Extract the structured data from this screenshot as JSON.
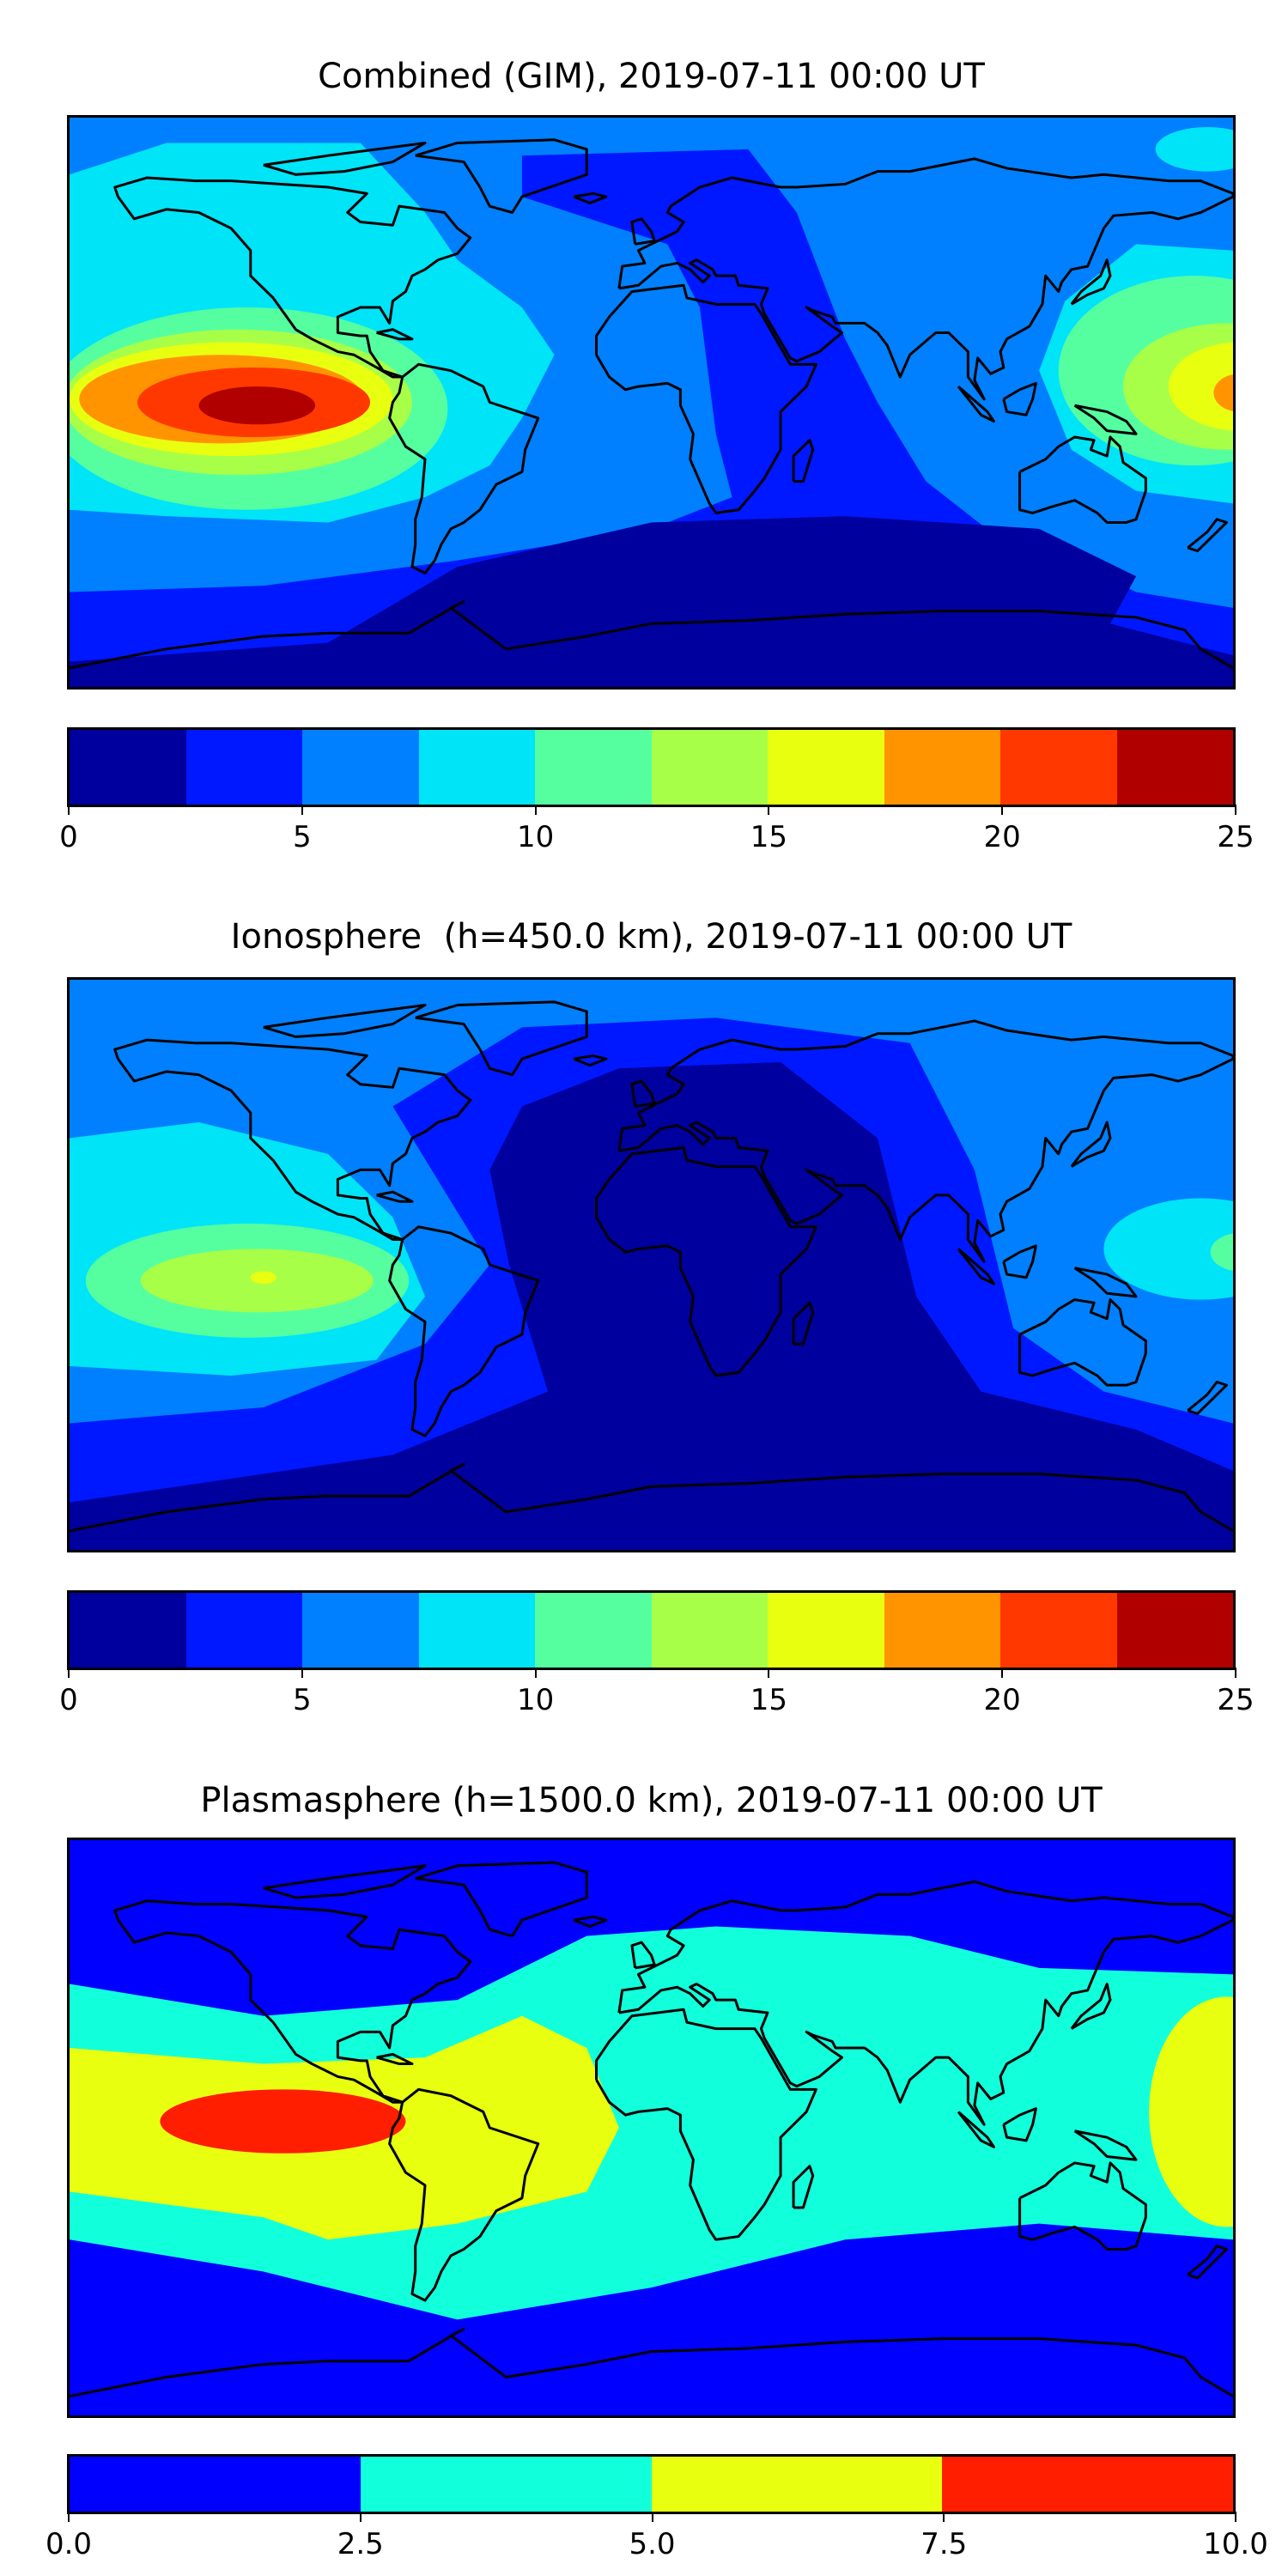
{
  "chart_data": [
    {
      "type": "heatmap",
      "title": "Combined (GIM), 2019-07-11 00:00 UT",
      "projection": "global lon/lat map with coastlines",
      "xrange_lon": [
        -180,
        180
      ],
      "yrange_lat": [
        -90,
        90
      ],
      "colorbar": {
        "levels": [
          0,
          2.5,
          5,
          7.5,
          10,
          12.5,
          15,
          17.5,
          20,
          22.5,
          25
        ],
        "colors": [
          "#00009e",
          "#0018ff",
          "#0080ff",
          "#00e4f8",
          "#55ffa0",
          "#a8ff48",
          "#e8ff10",
          "#ff9400",
          "#ff3800",
          "#b00000"
        ],
        "tick_values": [
          0,
          5,
          10,
          15,
          20,
          25
        ],
        "tick_labels": [
          "0",
          "5",
          "10",
          "15",
          "20",
          "25"
        ]
      },
      "features": {
        "maximum": "22.5-25 over eastern equatorial Pacific (~125W, 0N)",
        "secondary_max": "17.5-20 near 180E, 0N",
        "minimum": "0-2.5 southern Indian Ocean / Antarctica"
      }
    },
    {
      "type": "heatmap",
      "title": "Ionosphere  (h=450.0 km), 2019-07-11 00:00 UT",
      "projection": "global lon/lat map with coastlines",
      "xrange_lon": [
        -180,
        180
      ],
      "yrange_lat": [
        -90,
        90
      ],
      "colorbar": {
        "levels": [
          0,
          2.5,
          5,
          7.5,
          10,
          12.5,
          15,
          17.5,
          20,
          22.5,
          25
        ],
        "colors": [
          "#00009e",
          "#0018ff",
          "#0080ff",
          "#00e4f8",
          "#55ffa0",
          "#a8ff48",
          "#e8ff10",
          "#ff9400",
          "#ff3800",
          "#b00000"
        ],
        "tick_values": [
          0,
          5,
          10,
          15,
          20,
          25
        ],
        "tick_labels": [
          "0",
          "5",
          "10",
          "15",
          "20",
          "25"
        ]
      },
      "features": {
        "maximum": "15-17.5 over eastern Pacific (~120W, 0N)",
        "minimum": "0-2.5 over Atlantic, Africa, Indian Ocean"
      }
    },
    {
      "type": "heatmap",
      "title": "Plasmasphere (h=1500.0 km), 2019-07-11 00:00 UT",
      "projection": "global lon/lat map with coastlines",
      "xrange_lon": [
        -180,
        180
      ],
      "yrange_lat": [
        -90,
        90
      ],
      "colorbar": {
        "levels": [
          0.0,
          2.5,
          5.0,
          7.5,
          10.0
        ],
        "colors": [
          "#0000ff",
          "#12ffdc",
          "#e8ff10",
          "#ff1e00"
        ],
        "tick_values": [
          0.0,
          2.5,
          5.0,
          7.5,
          10.0
        ],
        "tick_labels": [
          "0.0",
          "2.5",
          "5.0",
          "7.5",
          "10.0"
        ]
      },
      "features": {
        "maximum": "7.5-10 over eastern Pacific (~120W, 0N)",
        "band": "2.5-5 equatorial band between ~40N and ~35S"
      }
    }
  ]
}
